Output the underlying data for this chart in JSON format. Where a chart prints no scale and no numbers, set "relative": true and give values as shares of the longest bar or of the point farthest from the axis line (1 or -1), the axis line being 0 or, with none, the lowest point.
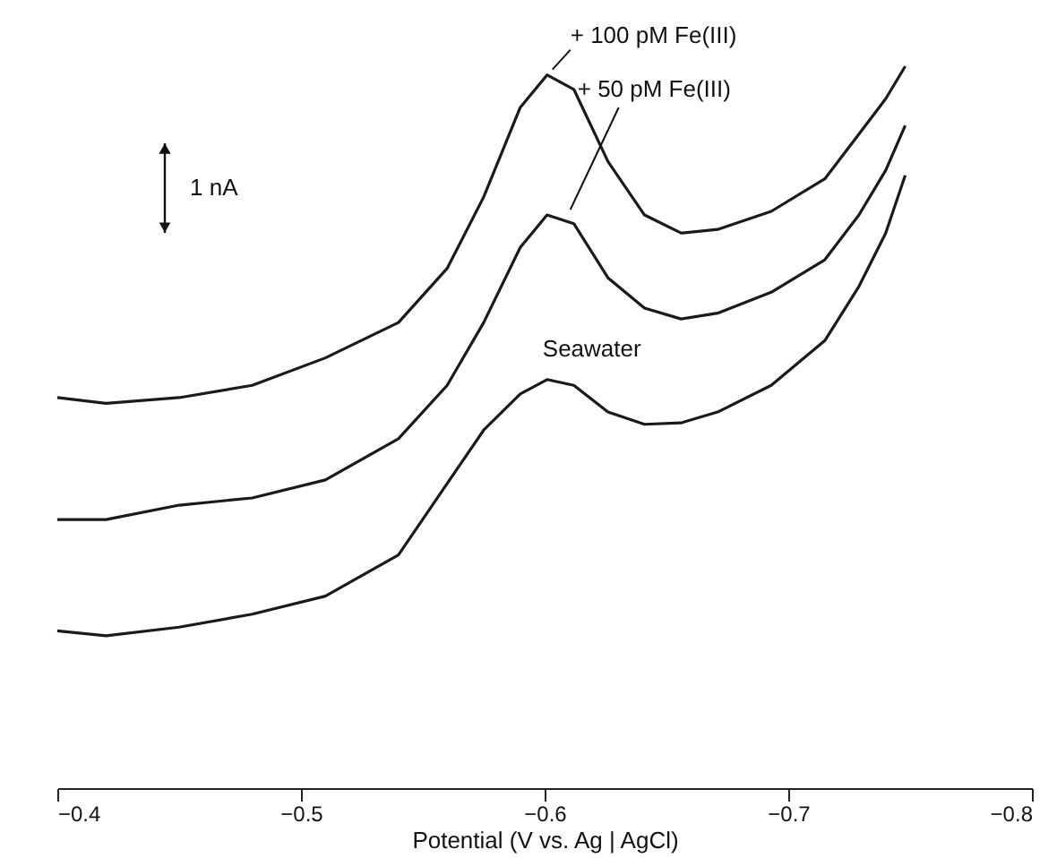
{
  "chart_data": {
    "type": "line",
    "relative": true,
    "xlabel": "Potential (V vs. Ag | AgCl)",
    "x": [
      -0.4,
      -0.42,
      -0.45,
      -0.48,
      -0.51,
      -0.54,
      -0.56,
      -0.575,
      -0.59,
      -0.601,
      -0.612,
      -0.626,
      -0.641,
      -0.656,
      -0.671,
      -0.693,
      -0.715,
      -0.729,
      -0.74,
      -0.748
    ],
    "xlim": [
      -0.4,
      -0.8
    ],
    "xticks": [
      {
        "value": -0.4,
        "label": "−0.4"
      },
      {
        "value": -0.5,
        "label": "−0.5"
      },
      {
        "value": -0.6,
        "label": "−0.6"
      },
      {
        "value": -0.7,
        "label": "−0.7"
      },
      {
        "value": -0.8,
        "label": "−0.8"
      }
    ],
    "series": [
      {
        "name": "+ 100 pM Fe(III)",
        "color": "#1a1a1a",
        "values": [
          0.541,
          0.533,
          0.541,
          0.558,
          0.596,
          0.645,
          0.72,
          0.819,
          0.943,
          0.988,
          0.968,
          0.868,
          0.794,
          0.769,
          0.774,
          0.799,
          0.844,
          0.906,
          0.955,
          1.0
        ]
      },
      {
        "name": "+ 50 pM Fe(III)",
        "color": "#1a1a1a",
        "values": [
          0.372,
          0.372,
          0.392,
          0.402,
          0.427,
          0.484,
          0.558,
          0.645,
          0.749,
          0.794,
          0.782,
          0.707,
          0.665,
          0.65,
          0.658,
          0.687,
          0.732,
          0.794,
          0.856,
          0.918
        ]
      },
      {
        "name": "Seawater",
        "color": "#1a1a1a",
        "values": [
          0.218,
          0.211,
          0.223,
          0.241,
          0.266,
          0.323,
          0.422,
          0.496,
          0.546,
          0.566,
          0.558,
          0.521,
          0.504,
          0.506,
          0.521,
          0.558,
          0.62,
          0.695,
          0.769,
          0.849
        ]
      }
    ],
    "annotations": [
      "1 nA"
    ],
    "grid": false,
    "line_style": "solid",
    "marker": "none"
  }
}
